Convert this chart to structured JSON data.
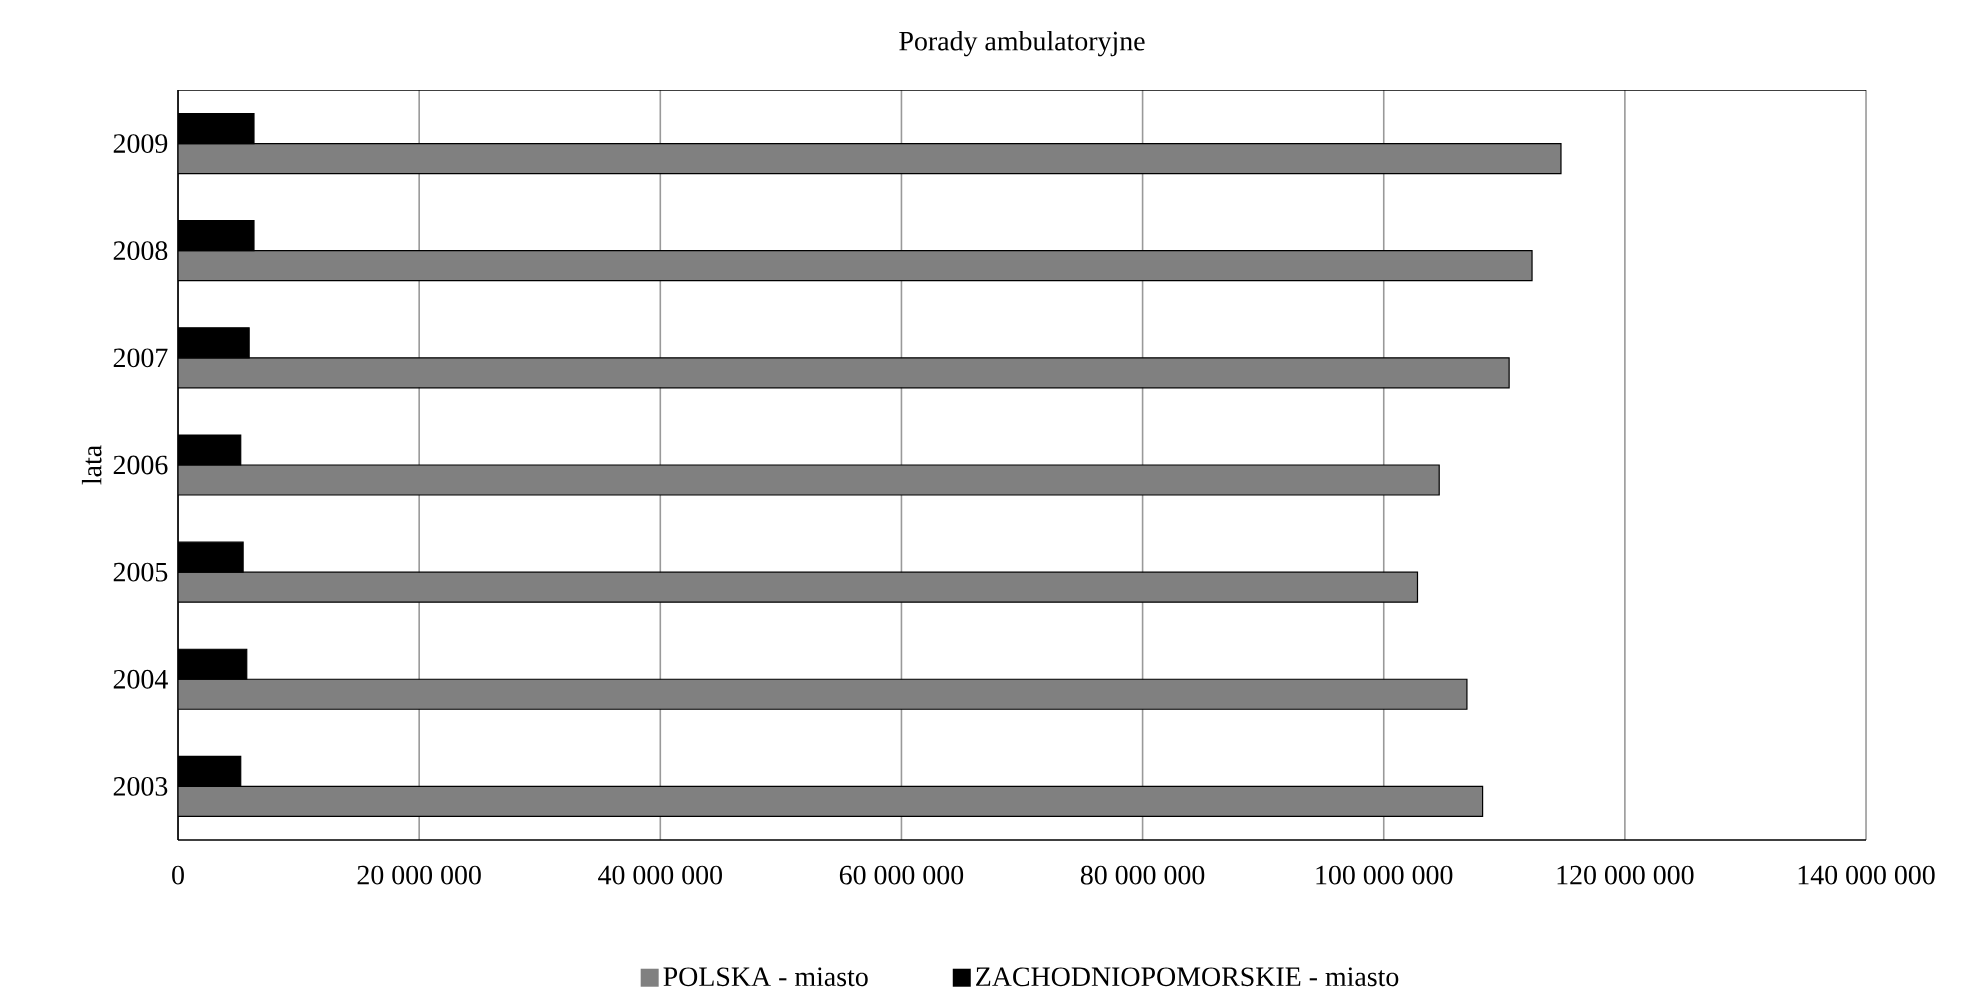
{
  "chart_data": {
    "type": "bar",
    "orientation": "horizontal",
    "title": "Porady ambulatoryjne",
    "ylabel": "lata",
    "categories": [
      "2009",
      "2008",
      "2007",
      "2006",
      "2005",
      "2004",
      "2003"
    ],
    "series": [
      {
        "name": "POLSKA - miasto",
        "color": "#808080",
        "values": [
          114700000,
          112300000,
          110400000,
          104600000,
          102800000,
          106900000,
          108200000
        ]
      },
      {
        "name": "ZACHODNIOPOMORSKIE - miasto",
        "color": "#000000",
        "values": [
          6300000,
          6300000,
          5900000,
          5200000,
          5400000,
          5700000,
          5200000
        ]
      }
    ],
    "xlim": [
      0,
      140000000
    ],
    "xticks": [
      0,
      {
        "value": 20000000,
        "label": "20 000 000"
      },
      {
        "value": 40000000,
        "label": "40 000 000"
      },
      {
        "value": 60000000,
        "label": "60 000 000"
      },
      {
        "value": 80000000,
        "label": "80 000 000"
      },
      {
        "value": 100000000,
        "label": "100 000 000"
      },
      {
        "value": 120000000,
        "label": "120 000 000"
      },
      {
        "value": 140000000,
        "label": "140 000 000"
      }
    ],
    "grid": "x",
    "legend": "bottom"
  }
}
